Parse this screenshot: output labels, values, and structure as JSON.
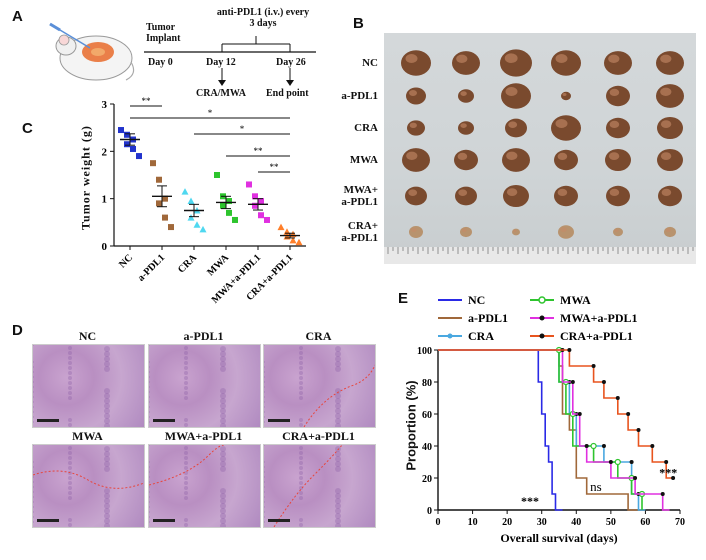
{
  "panels": {
    "A": "A",
    "B": "B",
    "C": "C",
    "D": "D",
    "E": "E"
  },
  "panelA": {
    "tumor_implant_line1": "Tumor",
    "tumor_implant_line2": "Implant",
    "treatment_line1": "anti-PDL1 (i.v.) every",
    "treatment_line2": "3 days",
    "day0": "Day 0",
    "day12": "Day 12",
    "day26": "Day 26",
    "cra_mwa": "CRA/MWA",
    "end_point": "End point"
  },
  "panelB": {
    "groups": [
      "NC",
      "a-PDL1",
      "CRA",
      "MWA",
      "MWA+\na-PDL1",
      "CRA+\na-PDL1"
    ]
  },
  "panelC": {
    "ylabel": "Tumor weight (g)",
    "sig_labels": [
      "**",
      "*",
      "*",
      "**",
      "**"
    ]
  },
  "panelD": {
    "labels": [
      "NC",
      "a-PDL1",
      "CRA",
      "MWA",
      "MWA+a-PDL1",
      "CRA+a-PDL1"
    ]
  },
  "panelE": {
    "ylabel": "Proportion (%)",
    "xlabel": "Overall survival (days)",
    "ns": "ns",
    "stars_left": "***",
    "stars_right": "***"
  },
  "chart_data": [
    {
      "type": "scatter",
      "title": "C",
      "ylabel": "Tumor weight (g)",
      "ylim": [
        0,
        3
      ],
      "yticks": [
        0,
        1,
        2,
        3
      ],
      "categories": [
        "NC",
        "a-PDL1",
        "CRA",
        "MWA",
        "MWA+a-PDL1",
        "CRA+a-PDL1"
      ],
      "colors": [
        "#2233cc",
        "#a0683a",
        "#4fd8f0",
        "#2ec42e",
        "#e030e0",
        "#ff7f2a"
      ],
      "markers": [
        "square",
        "square",
        "triangle",
        "square",
        "square",
        "triangle"
      ],
      "points": [
        [
          2.45,
          2.35,
          2.25,
          2.15,
          2.05,
          1.9
        ],
        [
          1.75,
          1.4,
          1.0,
          0.9,
          0.6,
          0.4
        ],
        [
          1.15,
          0.95,
          0.75,
          0.6,
          0.45,
          0.35
        ],
        [
          1.5,
          1.05,
          0.95,
          0.85,
          0.7,
          0.55
        ],
        [
          1.3,
          1.05,
          0.95,
          0.85,
          0.65,
          0.55
        ],
        [
          0.4,
          0.3,
          0.25,
          0.2,
          0.12,
          0.08
        ]
      ],
      "means": [
        2.25,
        1.05,
        0.75,
        0.92,
        0.88,
        0.22
      ],
      "sem": [
        0.12,
        0.22,
        0.13,
        0.13,
        0.12,
        0.05
      ],
      "significance": [
        {
          "between": [
            "NC",
            "a-PDL1"
          ],
          "label": "**"
        },
        {
          "between": [
            "NC",
            "CRA+a-PDL1"
          ],
          "label": "*"
        },
        {
          "between": [
            "CRA",
            "CRA+a-PDL1"
          ],
          "label": "*"
        },
        {
          "between": [
            "MWA",
            "CRA+a-PDL1"
          ],
          "label": "**"
        },
        {
          "between": [
            "MWA+a-PDL1",
            "CRA+a-PDL1"
          ],
          "label": "**"
        }
      ]
    },
    {
      "type": "line",
      "title": "E",
      "xlabel": "Overall survival (days)",
      "ylabel": "Proportion (%)",
      "xlim": [
        0,
        70
      ],
      "ylim": [
        0,
        100
      ],
      "xticks": [
        0,
        10,
        20,
        30,
        40,
        50,
        60,
        70
      ],
      "yticks": [
        0,
        20,
        40,
        60,
        80,
        100
      ],
      "series": [
        {
          "name": "NC",
          "color": "#2a2ae6",
          "marker": "none",
          "steps": [
            [
              0,
              100
            ],
            [
              29,
              100
            ],
            [
              29,
              80
            ],
            [
              30,
              80
            ],
            [
              30,
              60
            ],
            [
              31,
              60
            ],
            [
              31,
              40
            ],
            [
              32,
              40
            ],
            [
              32,
              30
            ],
            [
              33,
              30
            ],
            [
              33,
              10
            ],
            [
              34,
              10
            ],
            [
              34,
              0
            ],
            [
              36,
              0
            ]
          ]
        },
        {
          "name": "a-PDL1",
          "color": "#a0683a",
          "marker": "none",
          "steps": [
            [
              0,
              100
            ],
            [
              35,
              100
            ],
            [
              35,
              90
            ],
            [
              36,
              90
            ],
            [
              36,
              60
            ],
            [
              38,
              60
            ],
            [
              38,
              50
            ],
            [
              40,
              50
            ],
            [
              40,
              20
            ],
            [
              43,
              20
            ],
            [
              43,
              10
            ],
            [
              55,
              10
            ],
            [
              55,
              0
            ],
            [
              60,
              0
            ]
          ]
        },
        {
          "name": "CRA",
          "color": "#4aa8e0",
          "marker": "dot",
          "steps": [
            [
              0,
              100
            ],
            [
              35,
              100
            ],
            [
              35,
              80
            ],
            [
              38,
              80
            ],
            [
              38,
              60
            ],
            [
              40,
              60
            ],
            [
              40,
              40
            ],
            [
              48,
              40
            ],
            [
              48,
              30
            ],
            [
              56,
              30
            ],
            [
              56,
              10
            ],
            [
              58,
              10
            ],
            [
              58,
              0
            ],
            [
              60,
              0
            ]
          ]
        },
        {
          "name": "MWA",
          "color": "#2ec42e",
          "marker": "open-circle",
          "steps": [
            [
              0,
              100
            ],
            [
              35,
              100
            ],
            [
              35,
              80
            ],
            [
              37,
              80
            ],
            [
              37,
              60
            ],
            [
              39,
              60
            ],
            [
              39,
              40
            ],
            [
              45,
              40
            ],
            [
              45,
              30
            ],
            [
              52,
              30
            ],
            [
              52,
              20
            ],
            [
              56,
              20
            ],
            [
              56,
              10
            ],
            [
              59,
              10
            ],
            [
              59,
              0
            ]
          ]
        },
        {
          "name": "MWA+a-PDL1",
          "color": "#e030e0",
          "marker": "dot",
          "steps": [
            [
              0,
              100
            ],
            [
              36,
              100
            ],
            [
              36,
              80
            ],
            [
              39,
              80
            ],
            [
              39,
              60
            ],
            [
              41,
              60
            ],
            [
              41,
              40
            ],
            [
              43,
              40
            ],
            [
              43,
              30
            ],
            [
              50,
              30
            ],
            [
              50,
              20
            ],
            [
              57,
              20
            ],
            [
              57,
              10
            ],
            [
              65,
              10
            ],
            [
              65,
              0
            ],
            [
              67,
              0
            ]
          ]
        },
        {
          "name": "CRA+a-PDL1",
          "color": "#e8541e",
          "marker": "dot",
          "steps": [
            [
              0,
              100
            ],
            [
              38,
              100
            ],
            [
              38,
              90
            ],
            [
              45,
              90
            ],
            [
              45,
              80
            ],
            [
              48,
              80
            ],
            [
              48,
              70
            ],
            [
              52,
              70
            ],
            [
              52,
              60
            ],
            [
              55,
              60
            ],
            [
              55,
              50
            ],
            [
              58,
              50
            ],
            [
              58,
              40
            ],
            [
              62,
              40
            ],
            [
              62,
              30
            ],
            [
              66,
              30
            ],
            [
              66,
              20
            ],
            [
              68,
              20
            ]
          ]
        }
      ]
    }
  ]
}
